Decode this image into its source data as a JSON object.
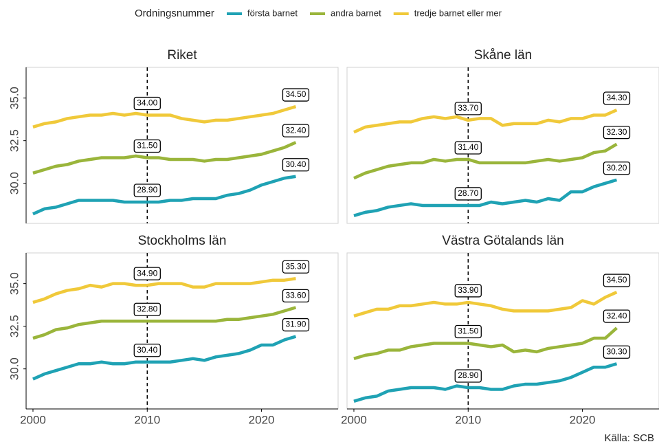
{
  "chart_data": {
    "type": "line",
    "legend_title": "Ordningsnummer",
    "caption": "Källa: SCB",
    "series": [
      {
        "name": "första barnet",
        "color": "#1fa2b4"
      },
      {
        "name": "andra barnet",
        "color": "#9ab53b"
      },
      {
        "name": "tredje barnet eller mer",
        "color": "#f0c93a"
      }
    ],
    "x": [
      2000,
      2001,
      2002,
      2003,
      2004,
      2005,
      2006,
      2007,
      2008,
      2009,
      2010,
      2011,
      2012,
      2013,
      2014,
      2015,
      2016,
      2017,
      2018,
      2019,
      2020,
      2021,
      2022,
      2023
    ],
    "xlim": [
      1999.4,
      2026.7
    ],
    "xticks": [
      2000,
      2010,
      2020
    ],
    "ylim": [
      27.65,
      36.8
    ],
    "yticks": [
      {
        "value": 30,
        "label": "30.0"
      },
      {
        "value": 32.5,
        "label": "32.5"
      },
      {
        "value": 35,
        "label": "35.0"
      }
    ],
    "vline": 2010,
    "facets": [
      {
        "title": "Riket",
        "values": [
          [
            28.2,
            28.5,
            28.6,
            28.8,
            29.0,
            29.0,
            29.0,
            29.0,
            28.9,
            28.9,
            28.9,
            28.9,
            29.0,
            29.0,
            29.1,
            29.1,
            29.1,
            29.3,
            29.4,
            29.6,
            29.9,
            30.1,
            30.3,
            30.4
          ],
          [
            30.6,
            30.8,
            31.0,
            31.1,
            31.3,
            31.4,
            31.5,
            31.5,
            31.5,
            31.6,
            31.5,
            31.5,
            31.4,
            31.4,
            31.4,
            31.3,
            31.4,
            31.4,
            31.5,
            31.6,
            31.7,
            31.9,
            32.1,
            32.4
          ],
          [
            33.3,
            33.5,
            33.6,
            33.8,
            33.9,
            34.0,
            34.0,
            34.1,
            34.0,
            34.1,
            34.0,
            34.0,
            34.0,
            33.8,
            33.7,
            33.6,
            33.7,
            33.7,
            33.8,
            33.9,
            34.0,
            34.1,
            34.3,
            34.5
          ]
        ],
        "value_labels": [
          [
            null,
            null,
            null,
            null,
            null,
            null,
            null,
            null,
            null,
            null,
            "28.90",
            null,
            null,
            null,
            null,
            null,
            null,
            null,
            null,
            null,
            null,
            null,
            null,
            "30.40"
          ],
          [
            null,
            null,
            null,
            null,
            null,
            null,
            null,
            null,
            null,
            null,
            "31.50",
            null,
            null,
            null,
            null,
            null,
            null,
            null,
            null,
            null,
            null,
            null,
            null,
            "32.40"
          ],
          [
            null,
            null,
            null,
            null,
            null,
            null,
            null,
            null,
            null,
            null,
            "34.00",
            null,
            null,
            null,
            null,
            null,
            null,
            null,
            null,
            null,
            null,
            null,
            null,
            "34.50"
          ]
        ]
      },
      {
        "title": "Skåne län",
        "values": [
          [
            28.1,
            28.3,
            28.4,
            28.6,
            28.7,
            28.8,
            28.7,
            28.7,
            28.7,
            28.7,
            28.7,
            28.7,
            28.9,
            28.8,
            28.9,
            29.0,
            28.9,
            29.1,
            29.0,
            29.5,
            29.5,
            29.8,
            30.0,
            30.2
          ],
          [
            30.3,
            30.6,
            30.8,
            31.0,
            31.1,
            31.2,
            31.2,
            31.4,
            31.3,
            31.4,
            31.4,
            31.2,
            31.2,
            31.2,
            31.2,
            31.2,
            31.3,
            31.4,
            31.3,
            31.4,
            31.5,
            31.8,
            31.9,
            32.3
          ],
          [
            33.0,
            33.3,
            33.4,
            33.5,
            33.6,
            33.6,
            33.8,
            33.9,
            33.8,
            33.9,
            33.7,
            33.8,
            33.8,
            33.4,
            33.5,
            33.5,
            33.5,
            33.7,
            33.6,
            33.8,
            33.8,
            34.0,
            34.0,
            34.3
          ]
        ],
        "value_labels": [
          [
            null,
            null,
            null,
            null,
            null,
            null,
            null,
            null,
            null,
            null,
            "28.70",
            null,
            null,
            null,
            null,
            null,
            null,
            null,
            null,
            null,
            null,
            null,
            null,
            "30.20"
          ],
          [
            null,
            null,
            null,
            null,
            null,
            null,
            null,
            null,
            null,
            null,
            "31.40",
            null,
            null,
            null,
            null,
            null,
            null,
            null,
            null,
            null,
            null,
            null,
            null,
            "32.30"
          ],
          [
            null,
            null,
            null,
            null,
            null,
            null,
            null,
            null,
            null,
            null,
            "33.70",
            null,
            null,
            null,
            null,
            null,
            null,
            null,
            null,
            null,
            null,
            null,
            null,
            "34.30"
          ]
        ]
      },
      {
        "title": "Stockholms län",
        "values": [
          [
            29.4,
            29.7,
            29.9,
            30.1,
            30.3,
            30.3,
            30.4,
            30.3,
            30.3,
            30.4,
            30.4,
            30.4,
            30.4,
            30.5,
            30.6,
            30.5,
            30.7,
            30.8,
            30.9,
            31.1,
            31.4,
            31.4,
            31.7,
            31.9
          ],
          [
            31.8,
            32.0,
            32.3,
            32.4,
            32.6,
            32.7,
            32.8,
            32.8,
            32.8,
            32.8,
            32.8,
            32.8,
            32.8,
            32.8,
            32.8,
            32.8,
            32.8,
            32.9,
            32.9,
            33.0,
            33.1,
            33.2,
            33.4,
            33.6
          ],
          [
            33.9,
            34.1,
            34.4,
            34.6,
            34.7,
            34.9,
            34.8,
            35.0,
            35.0,
            34.9,
            34.9,
            35.0,
            35.0,
            35.0,
            34.8,
            34.8,
            35.0,
            35.0,
            35.0,
            35.0,
            35.1,
            35.2,
            35.2,
            35.3
          ]
        ],
        "value_labels": [
          [
            null,
            null,
            null,
            null,
            null,
            null,
            null,
            null,
            null,
            null,
            "30.40",
            null,
            null,
            null,
            null,
            null,
            null,
            null,
            null,
            null,
            null,
            null,
            null,
            "31.90"
          ],
          [
            null,
            null,
            null,
            null,
            null,
            null,
            null,
            null,
            null,
            null,
            "32.80",
            null,
            null,
            null,
            null,
            null,
            null,
            null,
            null,
            null,
            null,
            null,
            null,
            "33.60"
          ],
          [
            null,
            null,
            null,
            null,
            null,
            null,
            null,
            null,
            null,
            null,
            "34.90",
            null,
            null,
            null,
            null,
            null,
            null,
            null,
            null,
            null,
            null,
            null,
            null,
            "35.30"
          ]
        ]
      },
      {
        "title": "Västra Götalands län",
        "values": [
          [
            28.1,
            28.3,
            28.4,
            28.7,
            28.8,
            28.9,
            28.9,
            28.9,
            28.8,
            29.0,
            28.9,
            28.9,
            28.8,
            28.8,
            29.0,
            29.1,
            29.1,
            29.2,
            29.3,
            29.5,
            29.8,
            30.1,
            30.1,
            30.3
          ],
          [
            30.6,
            30.8,
            30.9,
            31.1,
            31.1,
            31.3,
            31.4,
            31.5,
            31.5,
            31.5,
            31.5,
            31.4,
            31.3,
            31.4,
            31.0,
            31.1,
            31.0,
            31.2,
            31.3,
            31.4,
            31.5,
            31.8,
            31.8,
            32.4
          ],
          [
            33.1,
            33.3,
            33.5,
            33.5,
            33.7,
            33.7,
            33.8,
            33.9,
            33.8,
            33.8,
            33.9,
            33.8,
            33.7,
            33.5,
            33.4,
            33.4,
            33.4,
            33.4,
            33.5,
            33.6,
            34.0,
            33.8,
            34.2,
            34.5
          ]
        ],
        "value_labels": [
          [
            null,
            null,
            null,
            null,
            null,
            null,
            null,
            null,
            null,
            null,
            "28.90",
            null,
            null,
            null,
            null,
            null,
            null,
            null,
            null,
            null,
            null,
            null,
            null,
            "30.30"
          ],
          [
            null,
            null,
            null,
            null,
            null,
            null,
            null,
            null,
            null,
            null,
            "31.50",
            null,
            null,
            null,
            null,
            null,
            null,
            null,
            null,
            null,
            null,
            null,
            null,
            "32.40"
          ],
          [
            null,
            null,
            null,
            null,
            null,
            null,
            null,
            null,
            null,
            null,
            "33.90",
            null,
            null,
            null,
            null,
            null,
            null,
            null,
            null,
            null,
            null,
            null,
            null,
            "34.50"
          ]
        ]
      }
    ]
  }
}
